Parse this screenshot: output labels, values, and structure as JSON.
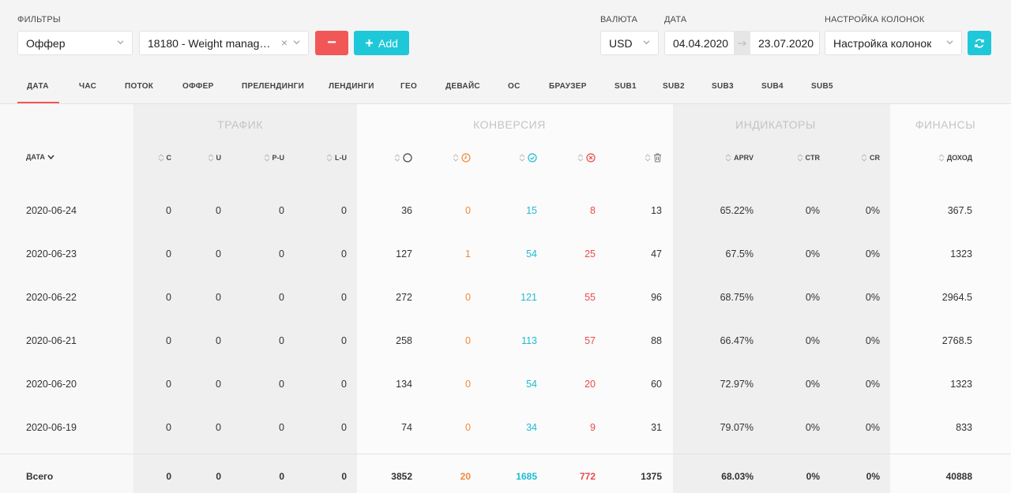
{
  "filters": {
    "label": "ФИЛЬТРЫ",
    "field_select": "Оффер",
    "value_select": "18180 - Weight manager - …",
    "clear_x": "×",
    "remove_label": "−",
    "add_label": "Add"
  },
  "currency": {
    "label": "ВАЛЮТА",
    "value": "USD"
  },
  "date": {
    "label": "ДАТА",
    "from": "04.04.2020",
    "to": "23.07.2020"
  },
  "columns_setting": {
    "label": "НАСТРОЙКА КОЛОНОК",
    "value": "Настройка колонок"
  },
  "tabs": [
    "ДАТА",
    "ЧАС",
    "ПОТОК",
    "ОФФЕР",
    "ПРЕЛЕНДИНГИ",
    "ЛЕНДИНГИ",
    "ГЕО",
    "ДЕВАЙС",
    "ОС",
    "БРАУЗЕР",
    "SUB1",
    "SUB2",
    "SUB3",
    "SUB4",
    "SUB5"
  ],
  "active_tab": "ДАТА",
  "groups": {
    "traffic": "ТРАФИК",
    "conversion": "КОНВЕРСИЯ",
    "indicators": "ИНДИКАТОРЫ",
    "finance": "ФИНАНСЫ"
  },
  "headers": {
    "date": "ДАТА",
    "c": "C",
    "u": "U",
    "pu": "P-U",
    "lu": "L-U",
    "aprv": "APRV",
    "ctr": "CTR",
    "cr": "CR",
    "income": "ДОХОД"
  },
  "status_icons": [
    "total-circle-icon",
    "pending-clock-icon",
    "approved-check-icon",
    "rejected-x-icon",
    "trash-icon"
  ],
  "colors": {
    "red": "#f25757",
    "cyan": "#1fc8d8",
    "orange": "#f08a3a"
  },
  "rows": [
    {
      "date": "2020-06-24",
      "c": "0",
      "u": "0",
      "pu": "0",
      "lu": "0",
      "total": "36",
      "pending": "0",
      "approved": "15",
      "rejected": "8",
      "trash": "13",
      "aprv": "65.22%",
      "ctr": "0%",
      "cr": "0%",
      "income": "367.5"
    },
    {
      "date": "2020-06-23",
      "c": "0",
      "u": "0",
      "pu": "0",
      "lu": "0",
      "total": "127",
      "pending": "1",
      "approved": "54",
      "rejected": "25",
      "trash": "47",
      "aprv": "67.5%",
      "ctr": "0%",
      "cr": "0%",
      "income": "1323"
    },
    {
      "date": "2020-06-22",
      "c": "0",
      "u": "0",
      "pu": "0",
      "lu": "0",
      "total": "272",
      "pending": "0",
      "approved": "121",
      "rejected": "55",
      "trash": "96",
      "aprv": "68.75%",
      "ctr": "0%",
      "cr": "0%",
      "income": "2964.5"
    },
    {
      "date": "2020-06-21",
      "c": "0",
      "u": "0",
      "pu": "0",
      "lu": "0",
      "total": "258",
      "pending": "0",
      "approved": "113",
      "rejected": "57",
      "trash": "88",
      "aprv": "66.47%",
      "ctr": "0%",
      "cr": "0%",
      "income": "2768.5"
    },
    {
      "date": "2020-06-20",
      "c": "0",
      "u": "0",
      "pu": "0",
      "lu": "0",
      "total": "134",
      "pending": "0",
      "approved": "54",
      "rejected": "20",
      "trash": "60",
      "aprv": "72.97%",
      "ctr": "0%",
      "cr": "0%",
      "income": "1323"
    },
    {
      "date": "2020-06-19",
      "c": "0",
      "u": "0",
      "pu": "0",
      "lu": "0",
      "total": "74",
      "pending": "0",
      "approved": "34",
      "rejected": "9",
      "trash": "31",
      "aprv": "79.07%",
      "ctr": "0%",
      "cr": "0%",
      "income": "833"
    }
  ],
  "totals": {
    "label": "Всего",
    "c": "0",
    "u": "0",
    "pu": "0",
    "lu": "0",
    "total": "3852",
    "pending": "20",
    "approved": "1685",
    "rejected": "772",
    "trash": "1375",
    "aprv": "68.03%",
    "ctr": "0%",
    "cr": "0%",
    "income": "40888"
  }
}
